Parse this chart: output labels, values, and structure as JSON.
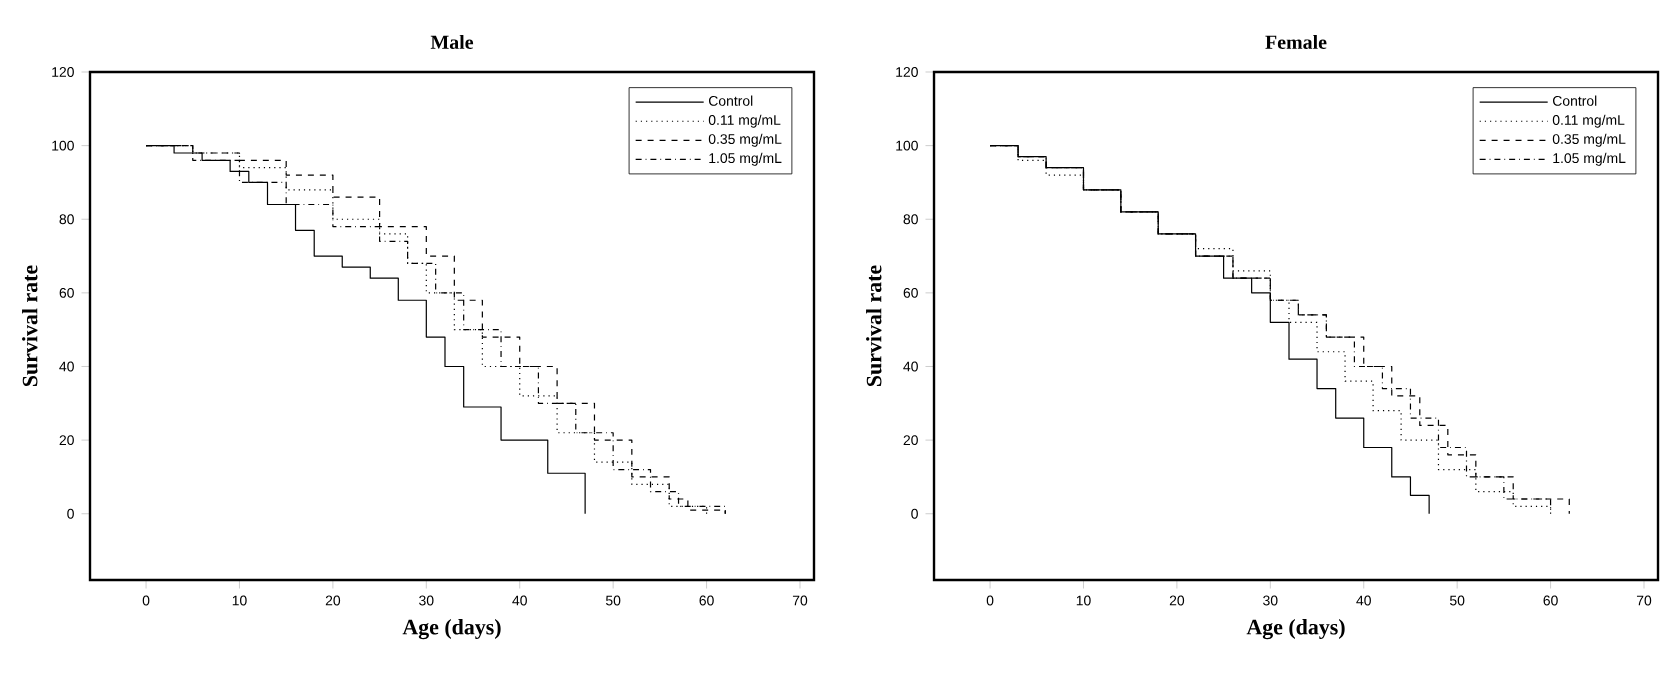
{
  "chart_data": [
    {
      "type": "step",
      "title": "Male",
      "xlabel": "Age (days)",
      "ylabel": "Survival rate",
      "xlim": [
        -6,
        71.5
      ],
      "ylim": [
        -18,
        120
      ],
      "xticks": [
        0,
        10,
        20,
        30,
        40,
        50,
        60,
        70
      ],
      "yticks": [
        0,
        20,
        40,
        60,
        80,
        100,
        120
      ],
      "legend": "top right",
      "grid": false,
      "series": [
        {
          "name": "Control",
          "color": "#000000",
          "line_style": "solid",
          "x": [
            0,
            3,
            6,
            9,
            11,
            13,
            16,
            18,
            21,
            24,
            27,
            30,
            32,
            34,
            38,
            43,
            47
          ],
          "values": [
            100,
            98,
            96,
            93,
            90,
            84,
            77,
            70,
            67,
            64,
            58,
            48,
            40,
            29,
            20,
            11,
            0
          ]
        },
        {
          "name": "0.11 mg/mL",
          "color": "#000000",
          "line_style": "dotted",
          "x": [
            0,
            5,
            10,
            15,
            20,
            25,
            28,
            30,
            33,
            36,
            40,
            44,
            48,
            52,
            56,
            60
          ],
          "values": [
            100,
            98,
            94,
            88,
            80,
            76,
            68,
            60,
            50,
            40,
            32,
            22,
            14,
            8,
            2,
            0
          ]
        },
        {
          "name": "0.35 mg/mL",
          "color": "#000000",
          "line_style": "dashed",
          "x": [
            0,
            5,
            10,
            15,
            20,
            25,
            30,
            33,
            36,
            40,
            44,
            48,
            52,
            56,
            58,
            62
          ],
          "values": [
            100,
            98,
            96,
            92,
            86,
            78,
            70,
            58,
            48,
            40,
            30,
            20,
            10,
            4,
            1,
            0
          ]
        },
        {
          "name": "1.05 mg/mL",
          "color": "#000000",
          "line_style": "dashdot",
          "x": [
            0,
            5,
            10,
            15,
            20,
            25,
            28,
            31,
            34,
            38,
            42,
            46,
            50,
            54,
            57,
            62
          ],
          "values": [
            100,
            96,
            90,
            84,
            78,
            74,
            68,
            60,
            50,
            40,
            30,
            22,
            12,
            6,
            2,
            0
          ]
        }
      ]
    },
    {
      "type": "step",
      "title": "Female",
      "xlabel": "Age (days)",
      "ylabel": "Survival rate",
      "xlim": [
        -6,
        71.5
      ],
      "ylim": [
        -18,
        120
      ],
      "xticks": [
        0,
        10,
        20,
        30,
        40,
        50,
        60,
        70
      ],
      "yticks": [
        0,
        20,
        40,
        60,
        80,
        100,
        120
      ],
      "legend": "top right",
      "grid": false,
      "series": [
        {
          "name": "Control",
          "color": "#000000",
          "line_style": "solid",
          "x": [
            0,
            3,
            6,
            10,
            14,
            18,
            22,
            25,
            28,
            30,
            32,
            35,
            37,
            40,
            43,
            45,
            47
          ],
          "values": [
            100,
            97,
            94,
            88,
            82,
            76,
            70,
            64,
            60,
            52,
            42,
            34,
            26,
            18,
            10,
            5,
            0
          ]
        },
        {
          "name": "0.11 mg/mL",
          "color": "#000000",
          "line_style": "dotted",
          "x": [
            0,
            3,
            6,
            10,
            14,
            18,
            22,
            26,
            30,
            32,
            35,
            38,
            41,
            44,
            48,
            52,
            56,
            60
          ],
          "values": [
            100,
            96,
            92,
            88,
            82,
            76,
            72,
            66,
            58,
            52,
            44,
            36,
            28,
            20,
            12,
            6,
            2,
            0
          ]
        },
        {
          "name": "0.35 mg/mL",
          "color": "#000000",
          "line_style": "dashed",
          "x": [
            0,
            3,
            6,
            10,
            14,
            18,
            22,
            26,
            30,
            33,
            36,
            40,
            43,
            46,
            49,
            52,
            56,
            62
          ],
          "values": [
            100,
            97,
            94,
            88,
            82,
            76,
            70,
            64,
            58,
            54,
            48,
            40,
            32,
            24,
            16,
            10,
            4,
            0
          ]
        },
        {
          "name": "1.05 mg/mL",
          "color": "#000000",
          "line_style": "dashdot",
          "x": [
            0,
            3,
            6,
            10,
            14,
            18,
            22,
            26,
            30,
            33,
            36,
            39,
            42,
            45,
            48,
            51,
            55,
            60
          ],
          "values": [
            100,
            97,
            94,
            88,
            82,
            76,
            70,
            64,
            58,
            54,
            48,
            40,
            34,
            26,
            18,
            10,
            4,
            0
          ]
        }
      ]
    }
  ]
}
